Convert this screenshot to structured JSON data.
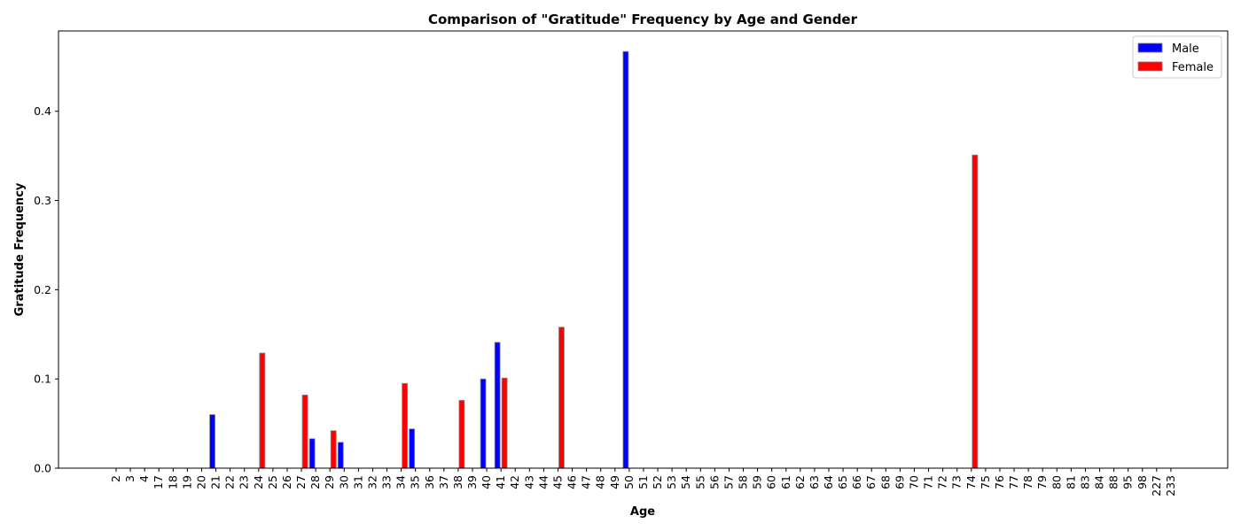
{
  "chart_data": {
    "type": "bar",
    "title": "Comparison of \"Gratitude\" Frequency by Age and Gender",
    "xlabel": "Age",
    "ylabel": "Gratitude Frequency",
    "ylim": [
      0,
      0.49
    ],
    "yticks": [
      "0.0",
      "0.1",
      "0.2",
      "0.3",
      "0.4"
    ],
    "grid": false,
    "legend_position": "top-right",
    "categories": [
      "2",
      "3",
      "4",
      "17",
      "18",
      "19",
      "20",
      "21",
      "22",
      "23",
      "24",
      "25",
      "26",
      "27",
      "28",
      "29",
      "30",
      "31",
      "32",
      "33",
      "34",
      "35",
      "36",
      "37",
      "38",
      "39",
      "40",
      "41",
      "42",
      "43",
      "44",
      "45",
      "46",
      "47",
      "48",
      "49",
      "50",
      "51",
      "52",
      "53",
      "54",
      "55",
      "56",
      "57",
      "58",
      "59",
      "60",
      "61",
      "62",
      "63",
      "64",
      "65",
      "66",
      "67",
      "68",
      "69",
      "70",
      "71",
      "72",
      "73",
      "74",
      "75",
      "76",
      "77",
      "78",
      "79",
      "80",
      "81",
      "83",
      "84",
      "88",
      "95",
      "98",
      "227",
      "233"
    ],
    "series": [
      {
        "name": "Male",
        "color": "#0000ff",
        "values": [
          0,
          0,
          0,
          0,
          0,
          0,
          0,
          0.06,
          0,
          0,
          0,
          0,
          0,
          0,
          0.033,
          0,
          0.029,
          0,
          0,
          0,
          0,
          0.044,
          0,
          0,
          0,
          0,
          0.1,
          0.141,
          0,
          0,
          0,
          0,
          0,
          0,
          0,
          0,
          0.467,
          0,
          0,
          0,
          0,
          0,
          0,
          0,
          0,
          0,
          0,
          0,
          0,
          0,
          0,
          0,
          0,
          0,
          0,
          0,
          0,
          0,
          0,
          0,
          0,
          0,
          0,
          0,
          0,
          0,
          0,
          0,
          0,
          0,
          0,
          0,
          0,
          0,
          0
        ]
      },
      {
        "name": "Female",
        "color": "#ff0000",
        "values": [
          0,
          0,
          0,
          0,
          0,
          0,
          0,
          0,
          0,
          0,
          0.129,
          0,
          0,
          0.082,
          0,
          0.042,
          0,
          0,
          0,
          0,
          0.095,
          0,
          0,
          0,
          0.076,
          0,
          0,
          0.101,
          0,
          0,
          0,
          0.158,
          0,
          0,
          0,
          0,
          0,
          0,
          0,
          0,
          0,
          0,
          0,
          0,
          0,
          0,
          0,
          0,
          0,
          0,
          0,
          0,
          0,
          0,
          0,
          0,
          0,
          0,
          0,
          0,
          0.351,
          0,
          0,
          0,
          0,
          0,
          0,
          0,
          0,
          0,
          0,
          0,
          0,
          0,
          0
        ]
      }
    ]
  }
}
